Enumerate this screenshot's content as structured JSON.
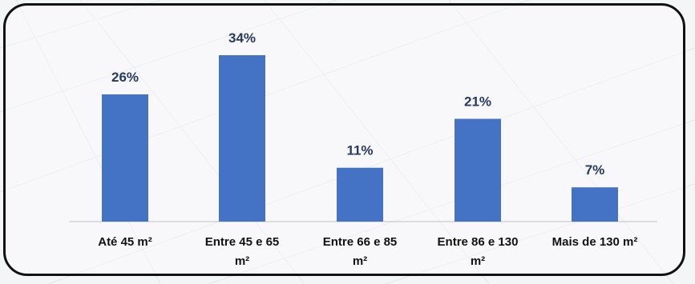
{
  "chart_data": {
    "type": "bar",
    "categories": [
      [
        "Até 45 m²"
      ],
      [
        "Entre 45 e 65",
        "m²"
      ],
      [
        "Entre 66 e 85",
        "m²"
      ],
      [
        "Entre 86 e 130",
        "m²"
      ],
      [
        "Mais de 130 m²"
      ]
    ],
    "values": [
      26,
      34,
      11,
      21,
      7
    ],
    "value_labels": [
      "26%",
      "34%",
      "11%",
      "21%",
      "7%"
    ],
    "ylim": [
      0,
      34
    ],
    "bar_color": "#4472c4",
    "grid": false,
    "legend": "none",
    "title": "",
    "xlabel": "",
    "ylabel": ""
  }
}
